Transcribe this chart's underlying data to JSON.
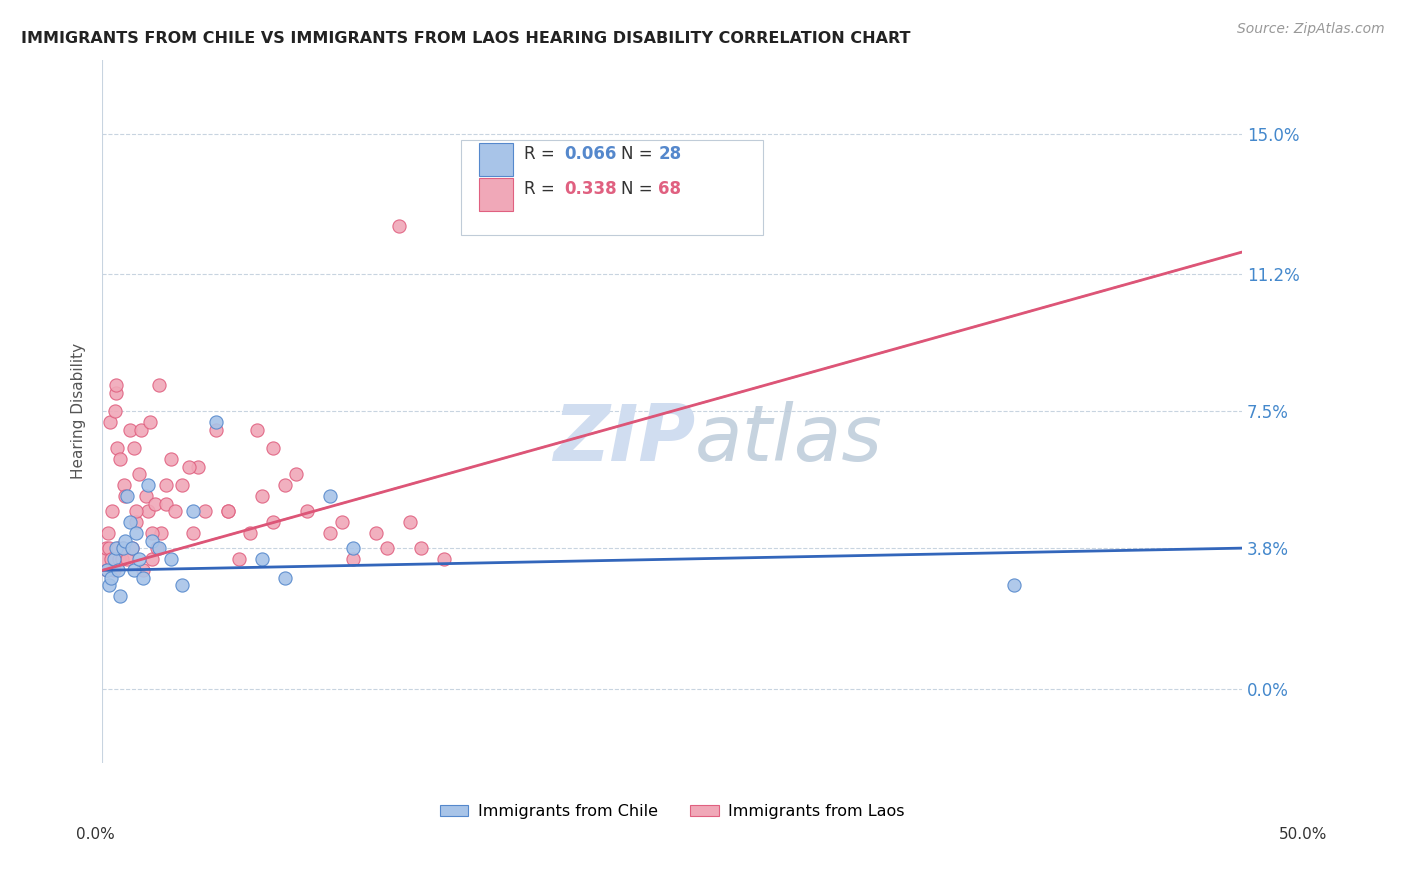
{
  "title": "IMMIGRANTS FROM CHILE VS IMMIGRANTS FROM LAOS HEARING DISABILITY CORRELATION CHART",
  "source": "Source: ZipAtlas.com",
  "ylabel": "Hearing Disability",
  "ytick_values": [
    0.0,
    3.8,
    7.5,
    11.2,
    15.0
  ],
  "xlim": [
    0.0,
    50.0
  ],
  "ylim": [
    -2.0,
    17.0
  ],
  "chile_R": 0.066,
  "chile_N": 28,
  "laos_R": 0.338,
  "laos_N": 68,
  "chile_scatter_color": "#a8c4e8",
  "chile_edge_color": "#5588cc",
  "laos_scatter_color": "#f0a8b8",
  "laos_edge_color": "#e06080",
  "chile_line_color": "#3366bb",
  "laos_line_color": "#dd5577",
  "watermark_color": "#d0ddf0",
  "legend_label_chile": "Immigrants from Chile",
  "legend_label_laos": "Immigrants from Laos",
  "chile_R_color": "#5588cc",
  "laos_R_color": "#e06080",
  "chile_scatter_x": [
    0.2,
    0.3,
    0.4,
    0.5,
    0.6,
    0.7,
    0.8,
    0.9,
    1.0,
    1.1,
    1.2,
    1.3,
    1.4,
    1.5,
    1.6,
    1.8,
    2.0,
    2.2,
    2.5,
    3.0,
    3.5,
    4.0,
    5.0,
    7.0,
    8.0,
    10.0,
    11.0,
    40.0
  ],
  "chile_scatter_y": [
    3.2,
    2.8,
    3.0,
    3.5,
    3.8,
    3.2,
    2.5,
    3.8,
    4.0,
    5.2,
    4.5,
    3.8,
    3.2,
    4.2,
    3.5,
    3.0,
    5.5,
    4.0,
    3.8,
    3.5,
    2.8,
    4.8,
    7.2,
    3.5,
    3.0,
    5.2,
    3.8,
    2.8
  ],
  "laos_scatter_x": [
    0.1,
    0.15,
    0.2,
    0.25,
    0.3,
    0.35,
    0.4,
    0.45,
    0.5,
    0.55,
    0.6,
    0.65,
    0.7,
    0.75,
    0.8,
    0.85,
    0.9,
    0.95,
    1.0,
    1.1,
    1.2,
    1.3,
    1.4,
    1.5,
    1.6,
    1.7,
    1.8,
    1.9,
    2.0,
    2.1,
    2.2,
    2.3,
    2.4,
    2.5,
    2.6,
    2.8,
    3.0,
    3.2,
    3.5,
    4.0,
    4.5,
    5.0,
    5.5,
    6.0,
    6.5,
    7.0,
    7.5,
    8.0,
    9.0,
    10.0,
    11.0,
    12.0,
    13.0,
    14.0,
    15.0,
    4.2,
    6.8,
    8.5,
    0.6,
    1.5,
    2.2,
    2.8,
    3.8,
    5.5,
    7.5,
    10.5,
    12.5,
    13.5
  ],
  "laos_scatter_y": [
    3.5,
    3.8,
    3.2,
    4.2,
    3.8,
    7.2,
    3.5,
    4.8,
    3.2,
    7.5,
    8.0,
    6.5,
    3.8,
    3.5,
    6.2,
    3.5,
    3.8,
    5.5,
    5.2,
    3.5,
    7.0,
    3.8,
    6.5,
    4.5,
    5.8,
    7.0,
    3.2,
    5.2,
    4.8,
    7.2,
    3.5,
    5.0,
    3.8,
    8.2,
    4.2,
    5.0,
    6.2,
    4.8,
    5.5,
    4.2,
    4.8,
    7.0,
    4.8,
    3.5,
    4.2,
    5.2,
    6.5,
    5.5,
    4.8,
    4.2,
    3.5,
    4.2,
    12.5,
    3.8,
    3.5,
    6.0,
    7.0,
    5.8,
    8.2,
    4.8,
    4.2,
    5.5,
    6.0,
    4.8,
    4.5,
    4.5,
    3.8,
    4.5
  ],
  "chile_trendline_start_y": 3.2,
  "chile_trendline_end_y": 3.8,
  "laos_trendline_start_y": 3.2,
  "laos_trendline_end_y": 11.8
}
